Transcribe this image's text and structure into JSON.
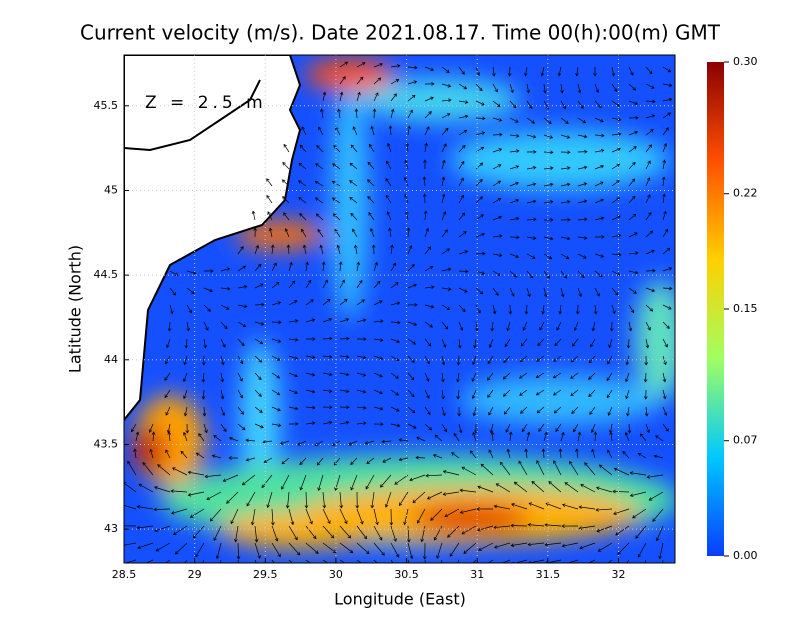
{
  "chart_data": {
    "type": "quiver",
    "title": "Current velocity (m/s). Date 2021.08.17. Time 00(h):00(m) GMT",
    "annotation": "Z = 2.5 m",
    "x_label": "Longitude (East)",
    "y_label": "Latitude (North)",
    "xlim": [
      28.5,
      32.4
    ],
    "ylim": [
      42.8,
      45.8
    ],
    "xticks": [
      28.5,
      29,
      29.5,
      30,
      30.5,
      31,
      31.5,
      32
    ],
    "yticks": [
      43,
      43.5,
      44,
      44.5,
      45,
      45.5
    ],
    "grid": true,
    "colorbar": {
      "lim": [
        0,
        0.3
      ],
      "ticks": [
        {
          "value": 0,
          "label": "0.00"
        },
        {
          "value": 0.07,
          "label": "0.07"
        },
        0.15,
        {
          "value": 0.22,
          "label": "0.22"
        },
        {
          "value": 0.3,
          "label": "0.30"
        }
      ],
      "colors": [
        "#0a3cff",
        "#00c8ff",
        "#a0ff60",
        "#ffd000",
        "#ff5000",
        "#8b0000"
      ]
    }
  }
}
